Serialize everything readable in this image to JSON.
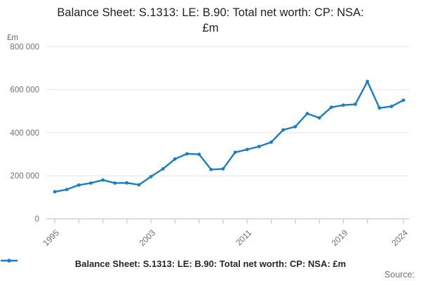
{
  "title": {
    "line1": "Balance Sheet: S.1313: LE: B.90: Total net worth: CP: NSA:",
    "line2": "£m"
  },
  "source_label": "Source:",
  "chart_data": {
    "type": "line",
    "title": "Balance Sheet: S.1313: LE: B.90: Total net worth: CP: NSA: £m",
    "ylabel_unit": "£m",
    "x": [
      1995,
      1996,
      1997,
      1998,
      1999,
      2000,
      2001,
      2002,
      2003,
      2004,
      2005,
      2006,
      2007,
      2008,
      2009,
      2010,
      2011,
      2012,
      2013,
      2014,
      2015,
      2016,
      2017,
      2018,
      2019,
      2020,
      2021,
      2022,
      2023,
      2024
    ],
    "series": [
      {
        "name": "Balance Sheet: S.1313: LE: B.90: Total net worth: CP: NSA: £m",
        "values": [
          126000,
          136000,
          157000,
          166000,
          180000,
          166000,
          167000,
          158000,
          196000,
          232000,
          278000,
          302000,
          300000,
          229000,
          232000,
          309000,
          322000,
          336000,
          356000,
          413000,
          428000,
          489000,
          469000,
          518000,
          528000,
          532000,
          638000,
          515000,
          522000,
          551000
        ],
        "color": "#1b7dc4",
        "marker": "circle"
      }
    ],
    "xlim": [
      1995,
      2024
    ],
    "ylim": [
      0,
      800000
    ],
    "yticks": [
      0,
      200000,
      400000,
      600000,
      800000
    ],
    "ytick_labels": [
      "0",
      "200 000",
      "400 000",
      "600 000",
      "800 000"
    ],
    "xticks_minor": [
      1995,
      1997,
      1999,
      2001,
      2003,
      2005,
      2007,
      2009,
      2011,
      2013,
      2015,
      2017,
      2019,
      2021,
      2024
    ],
    "xticks_labeled": [
      1995,
      2003,
      2011,
      2019,
      2024
    ],
    "grid": "horizontal",
    "legend_position": "bottom",
    "colors": {
      "line": "#1b7dc4",
      "grid": "#e6e6e6",
      "axis": "#c2cce4",
      "tick_text": "#707070",
      "title_text": "#1f1f1f"
    }
  }
}
